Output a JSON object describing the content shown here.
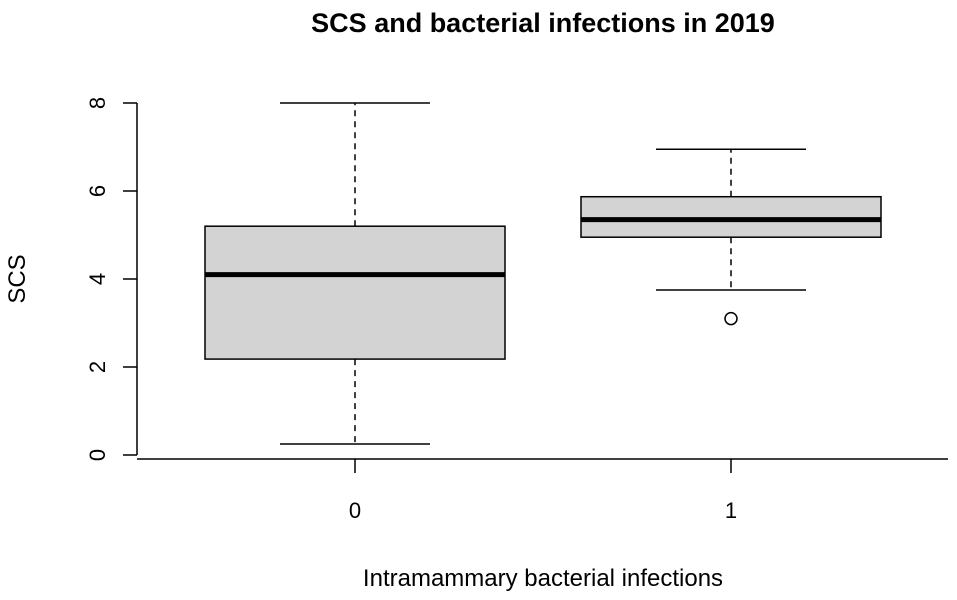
{
  "chart_data": {
    "type": "boxplot",
    "title": "SCS and bacterial infections in 2019",
    "xlabel": "Intramammary bacterial infections",
    "ylabel": "SCS",
    "categories": [
      "0",
      "1"
    ],
    "ylim": [
      0,
      8
    ],
    "yticks": [
      "0",
      "2",
      "4",
      "6",
      "8"
    ],
    "boxes": [
      {
        "category": "0",
        "whisker_low": 0.25,
        "q1": 2.18,
        "median": 4.1,
        "q3": 5.2,
        "whisker_high": 8.0,
        "outliers": []
      },
      {
        "category": "1",
        "whisker_low": 3.75,
        "q1": 4.95,
        "median": 5.35,
        "q3": 5.87,
        "whisker_high": 6.95,
        "outliers": [
          3.1
        ]
      }
    ],
    "box_color": "#d3d3d3",
    "grid": false
  }
}
